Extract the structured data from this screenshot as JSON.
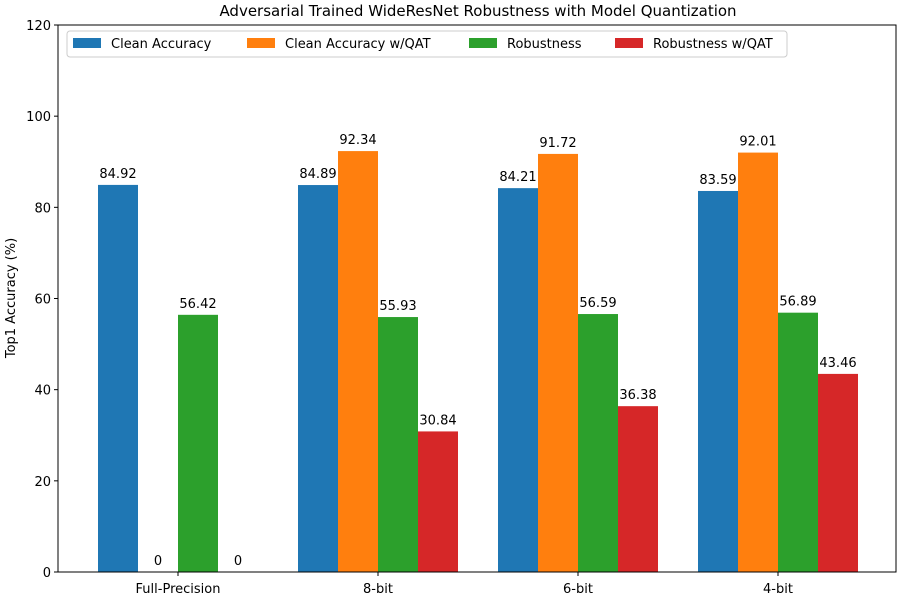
{
  "chart_data": {
    "type": "bar",
    "title": "Adversarial Trained WideResNet Robustness with Model Quantization",
    "xlabel": "",
    "ylabel": "Top1 Accuracy (%)",
    "ylim": [
      0,
      120
    ],
    "yticks": [
      0,
      20,
      40,
      60,
      80,
      100,
      120
    ],
    "categories": [
      "Full-Precision",
      "8-bit",
      "6-bit",
      "4-bit"
    ],
    "legend_position": "top-left",
    "grid": false,
    "series": [
      {
        "name": "Clean Accuracy",
        "color": "#1f77b4",
        "values": [
          84.92,
          84.89,
          84.21,
          83.59
        ],
        "labels": [
          "84.92",
          "84.89",
          "84.21",
          "83.59"
        ]
      },
      {
        "name": "Clean Accuracy w/QAT",
        "color": "#ff7f0e",
        "values": [
          0,
          92.34,
          91.72,
          92.01
        ],
        "labels": [
          "0",
          "92.34",
          "91.72",
          "92.01"
        ]
      },
      {
        "name": "Robustness",
        "color": "#2ca02c",
        "values": [
          56.42,
          55.93,
          56.59,
          56.89
        ],
        "labels": [
          "56.42",
          "55.93",
          "56.59",
          "56.89"
        ]
      },
      {
        "name": "Robustness w/QAT",
        "color": "#d62728",
        "values": [
          0,
          30.84,
          36.38,
          43.46
        ],
        "labels": [
          "0",
          "30.84",
          "36.38",
          "43.46"
        ]
      }
    ]
  }
}
